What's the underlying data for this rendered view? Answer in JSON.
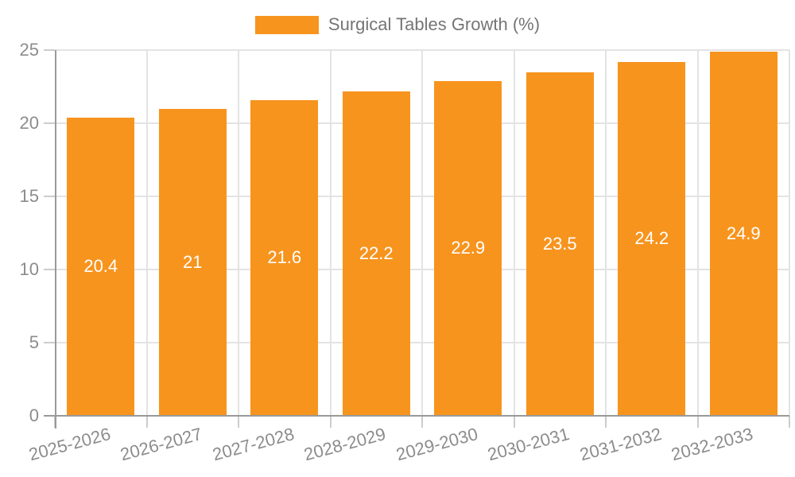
{
  "chart_data": {
    "type": "bar",
    "title": "",
    "legend": "Surgical Tables Growth (%)",
    "categories": [
      "2025-2026",
      "2026-2027",
      "2027-2028",
      "2028-2029",
      "2029-2030",
      "2030-2031",
      "2031-2032",
      "2032-2033"
    ],
    "values": [
      20.4,
      21,
      21.6,
      22.2,
      22.9,
      23.5,
      24.2,
      24.9
    ],
    "value_labels": [
      "20.4",
      "21",
      "21.6",
      "22.2",
      "22.9",
      "23.5",
      "24.2",
      "24.9"
    ],
    "xlabel": "",
    "ylabel": "",
    "ylim": [
      0,
      25
    ],
    "yticks": [
      0,
      5,
      10,
      15,
      20,
      25
    ],
    "grid": true,
    "legend_position": "top-center",
    "x_label_rotation_deg": -15,
    "colors": {
      "bar": "#F7941E",
      "axis_line": "#9a9a9a",
      "gridline": "#e3e3e3",
      "tick_mark": "#cccccc",
      "tick_label": "#8c8c8c",
      "legend_text": "#757575",
      "value_label": "#ffffff",
      "background": "#ffffff"
    }
  }
}
